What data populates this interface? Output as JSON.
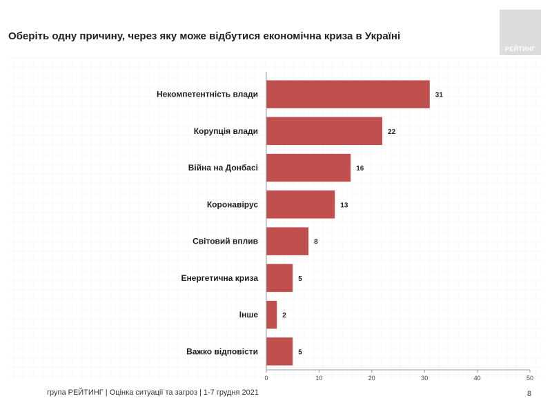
{
  "slide": {
    "title": "Оберіть одну причину, через яку може відбутися економічна криза в Україні",
    "logo_text": "РЕЙТИНГ",
    "footer": "група РЕЙТИНГ |  Оцінка ситуації та загроз  | 1-7 грудня 2021",
    "page_number": "8"
  },
  "colors": {
    "bar": "#c0504d",
    "grid": "#eeeeee",
    "axis": "#999999"
  },
  "chart_data": {
    "type": "bar",
    "orientation": "horizontal",
    "categories": [
      "Некомпетентність влади",
      "Корупція влади",
      "Війна на Донбасі",
      "Коронавірус",
      "Світовий вплив",
      "Енергетична криза",
      "Інше",
      "Важко відповісти"
    ],
    "values": [
      31,
      22,
      16,
      13,
      8,
      5,
      2,
      5
    ],
    "xlim": [
      0,
      50
    ],
    "xticks": [
      0,
      10,
      20,
      30,
      40,
      50
    ],
    "data_labels": true,
    "grid": false
  }
}
